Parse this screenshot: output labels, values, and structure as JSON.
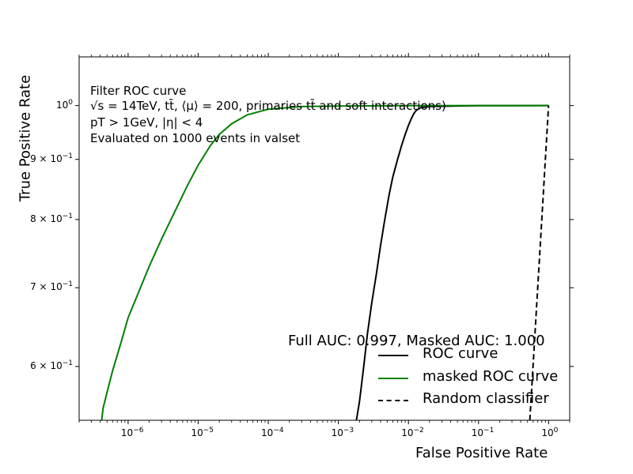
{
  "chart_data": {
    "type": "line",
    "xscale": "log",
    "yscale": "log",
    "xlim": [
      2e-07,
      2.0
    ],
    "ylim": [
      0.54,
      1.1
    ],
    "grid": false,
    "xlabel": "False Positive Rate",
    "ylabel": "True Positive Rate",
    "x_ticks": [
      {
        "value": 1e-06,
        "base": "10",
        "exp": "−6"
      },
      {
        "value": 1e-05,
        "base": "10",
        "exp": "−5"
      },
      {
        "value": 0.0001,
        "base": "10",
        "exp": "−4"
      },
      {
        "value": 0.001,
        "base": "10",
        "exp": "−3"
      },
      {
        "value": 0.01,
        "base": "10",
        "exp": "−2"
      },
      {
        "value": 0.1,
        "base": "10",
        "exp": "−1"
      },
      {
        "value": 1,
        "base": "10",
        "exp": "0"
      }
    ],
    "y_ticks": [
      {
        "value": 1.0,
        "base": "10",
        "exp": "0",
        "mant": ""
      },
      {
        "value": 0.9,
        "base": "10",
        "exp": "−1",
        "mant": "9 × "
      },
      {
        "value": 0.8,
        "base": "10",
        "exp": "−1",
        "mant": "8 × "
      },
      {
        "value": 0.7,
        "base": "10",
        "exp": "−1",
        "mant": "7 × "
      },
      {
        "value": 0.6,
        "base": "10",
        "exp": "−1",
        "mant": "6 × "
      }
    ],
    "annotations": [
      "Filter ROC curve",
      "√s = 14TeV, tt̄, ⟨μ⟩ = 200, primaries tt̄ and soft interactions)",
      "pT > 1GeV, |η| < 4",
      "Evaluated on 1000 events in valset"
    ],
    "auc_text": "Full AUC: 0.997, Masked AUC:  1.000",
    "legend_position": "lower-right",
    "series": [
      {
        "name": "ROC curve",
        "color": "#000000",
        "dash": "solid",
        "x": [
          0.00181,
          0.002,
          0.0023,
          0.0026,
          0.003,
          0.0035,
          0.004,
          0.0046,
          0.0053,
          0.006,
          0.007,
          0.008,
          0.009,
          0.01,
          0.011,
          0.012,
          0.013,
          0.015,
          0.02,
          0.05,
          0.1,
          0.3,
          1.0
        ],
        "y": [
          0.54,
          0.56,
          0.6,
          0.64,
          0.68,
          0.72,
          0.76,
          0.8,
          0.84,
          0.87,
          0.9,
          0.925,
          0.945,
          0.962,
          0.975,
          0.985,
          0.991,
          0.996,
          0.998,
          0.9992,
          0.9997,
          0.9999,
          1.0
        ]
      },
      {
        "name": "masked ROC curve",
        "color": "#008000",
        "dash": "solid",
        "x": [
          4.2e-07,
          4.4e-07,
          5e-07,
          6e-07,
          8e-07,
          1e-06,
          1.5e-06,
          2e-06,
          3e-06,
          5e-06,
          7e-06,
          1e-05,
          1.5e-05,
          2e-05,
          3e-05,
          5e-05,
          0.0001,
          0.0003,
          0.001,
          0.01,
          1.0
        ],
        "y": [
          0.54,
          0.553,
          0.57,
          0.595,
          0.63,
          0.66,
          0.7,
          0.73,
          0.77,
          0.82,
          0.855,
          0.89,
          0.925,
          0.945,
          0.965,
          0.982,
          0.993,
          0.998,
          0.999,
          0.9998,
          1.0
        ]
      },
      {
        "name": "Random classifier",
        "color": "#000000",
        "dash": "dashed",
        "x": [
          0.54,
          1.0
        ],
        "y": [
          0.54,
          1.0
        ]
      }
    ]
  }
}
